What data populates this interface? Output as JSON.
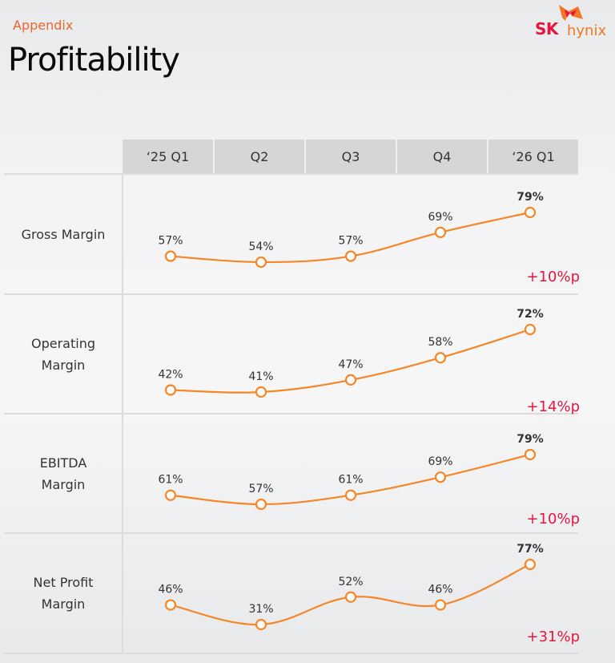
{
  "header": {
    "section": "Appendix",
    "title": "Profitability",
    "logo": {
      "sk": "SK",
      "hynix": "hynix"
    }
  },
  "colors": {
    "accent": "#f0642e",
    "line": "#f5862a",
    "delta": "#e5173f",
    "header_bg": "#d6d6d6",
    "logo_red": "#e5173f",
    "logo_orange": "#f47725"
  },
  "chart_data": {
    "type": "line",
    "title": "Profitability",
    "categories": [
      "‘25 Q1",
      "Q2",
      "Q3",
      "Q4",
      "‘26 Q1"
    ],
    "unit": "%",
    "series": [
      {
        "name": "Gross Margin",
        "label": "Gross Margin",
        "values": [
          57,
          54,
          57,
          69,
          79
        ],
        "labels": [
          "57%",
          "54%",
          "57%",
          "69%",
          "79%"
        ],
        "delta": "+10%p"
      },
      {
        "name": "Operating Margin",
        "label": "Operating\nMargin",
        "values": [
          42,
          41,
          47,
          58,
          72
        ],
        "labels": [
          "42%",
          "41%",
          "47%",
          "58%",
          "72%"
        ],
        "delta": "+14%p"
      },
      {
        "name": "EBITDA Margin",
        "label": "EBITDA\nMargin",
        "values": [
          61,
          57,
          61,
          69,
          79
        ],
        "labels": [
          "61%",
          "57%",
          "61%",
          "69%",
          "79%"
        ],
        "delta": "+10%p"
      },
      {
        "name": "Net Profit Margin",
        "label": "Net Profit\nMargin",
        "values": [
          46,
          31,
          52,
          46,
          77
        ],
        "labels": [
          "46%",
          "31%",
          "52%",
          "46%",
          "77%"
        ],
        "delta": "+31%p"
      }
    ],
    "xlabel": "",
    "ylabel": "",
    "grid": false,
    "legend": "row-labels-left"
  }
}
